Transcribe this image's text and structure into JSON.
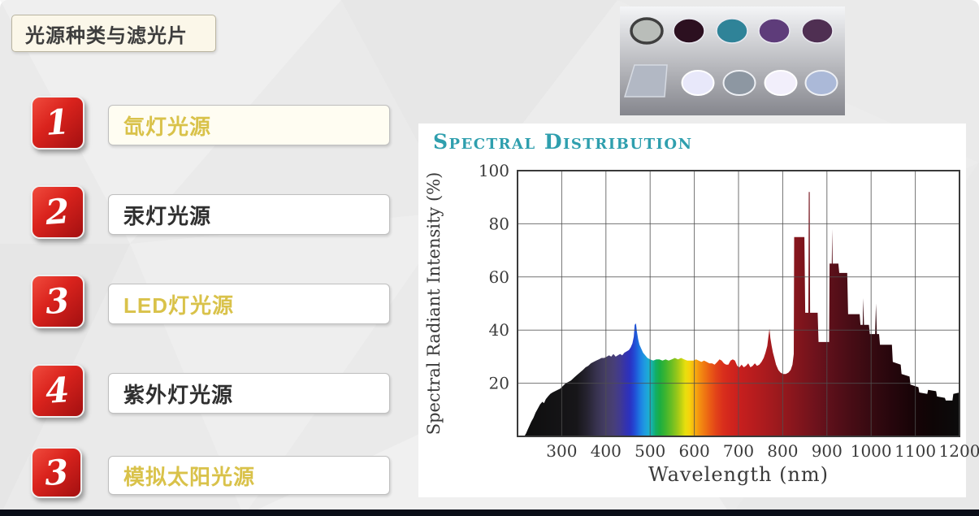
{
  "slide": {
    "title": "光源种类与滤光片",
    "items": [
      {
        "number": "1",
        "label": "氙灯光源",
        "label_color": "gold"
      },
      {
        "number": "2",
        "label": "汞灯光源",
        "label_color": "dark"
      },
      {
        "number": "3",
        "label": "LED灯光源",
        "label_color": "gold"
      },
      {
        "number": "4",
        "label": "紫外灯光源",
        "label_color": "dark"
      },
      {
        "number": "3",
        "label": "模拟太阳光源",
        "label_color": "gold"
      }
    ],
    "colors": {
      "gold_text": "#d9c24a",
      "dark_text": "#2f2f2f",
      "badge_red_light": "#f04b3d",
      "badge_red_dark": "#a31011",
      "title_teal": "#2f9fae",
      "bottom_bar": "#0a0e18"
    }
  },
  "filters_image": {
    "description": "photo of optical filters on gray gradient background",
    "background_top": "#f4f5f7",
    "background_bottom": "#85868d",
    "top_row": [
      {
        "name": "neutral-gray-filter",
        "color": "#b9bdb9",
        "rim": "#3f3f3f",
        "rim_width": 3.5
      },
      {
        "name": "dark-maroon-filter",
        "color": "#2c1020",
        "rim": "#e9e9f0",
        "rim_width": 1.5
      },
      {
        "name": "teal-filter",
        "color": "#2f8398",
        "rim": "#e9e9f0",
        "rim_width": 1.5
      },
      {
        "name": "purple-filter",
        "color": "#5e3c7a",
        "rim": "#e9e9f0",
        "rim_width": 1.5
      },
      {
        "name": "plum-filter",
        "color": "#4f2f52",
        "rim": "#e9e9f0",
        "rim_width": 1.5
      }
    ],
    "glass_plate": {
      "name": "square-glass-plate",
      "color": "#b2b8c4",
      "edge": "#d6dae2"
    },
    "bottom_row": [
      {
        "name": "pale-lavender-filter",
        "color": "#e8e8fa",
        "rim": "#ffffff",
        "rim_width": 2
      },
      {
        "name": "gray-blue-filter",
        "color": "#8d97a2",
        "rim": "#eef0f4",
        "rim_width": 2
      },
      {
        "name": "near-white-filter",
        "color": "#f2effb",
        "rim": "#ffffff",
        "rim_width": 2
      },
      {
        "name": "periwinkle-filter",
        "color": "#abb9d8",
        "rim": "#eef0f4",
        "rim_width": 2
      }
    ]
  },
  "chart_data": {
    "type": "area",
    "title": "Spectral Distribution",
    "xlabel": "Wavelength (nm)",
    "ylabel": "Spectral Radiant Intensity (%)",
    "xlim": [
      200,
      1200
    ],
    "ylim": [
      0,
      100
    ],
    "x_ticks": [
      300,
      400,
      500,
      600,
      700,
      800,
      900,
      1000,
      1100,
      1200
    ],
    "y_ticks": [
      20,
      40,
      60,
      80,
      100
    ],
    "grid": true,
    "legend": "none",
    "series": [
      {
        "name": "xenon lamp spectral radiant intensity (%) vs wavelength (nm)",
        "points": [
          [
            215,
            0
          ],
          [
            219,
            1
          ],
          [
            223,
            2.5
          ],
          [
            227,
            4
          ],
          [
            231,
            5.5
          ],
          [
            236,
            7
          ],
          [
            241,
            9
          ],
          [
            246,
            10.5
          ],
          [
            251,
            12
          ],
          [
            256,
            13
          ],
          [
            260,
            12.5
          ],
          [
            264,
            14
          ],
          [
            269,
            15
          ],
          [
            274,
            16
          ],
          [
            279,
            16.5
          ],
          [
            285,
            17
          ],
          [
            291,
            17.5
          ],
          [
            297,
            18
          ],
          [
            303,
            19
          ],
          [
            309,
            20
          ],
          [
            315,
            20.5
          ],
          [
            321,
            21
          ],
          [
            327,
            22
          ],
          [
            334,
            23
          ],
          [
            341,
            24
          ],
          [
            348,
            25
          ],
          [
            354,
            26
          ],
          [
            360,
            26.5
          ],
          [
            366,
            27.5
          ],
          [
            372,
            28
          ],
          [
            378,
            28.5
          ],
          [
            384,
            29
          ],
          [
            390,
            29.5
          ],
          [
            396,
            29.5
          ],
          [
            402,
            30
          ],
          [
            407,
            30.5
          ],
          [
            412,
            30
          ],
          [
            417,
            31
          ],
          [
            422,
            30
          ],
          [
            427,
            30.5
          ],
          [
            432,
            31
          ],
          [
            437,
            30.5
          ],
          [
            442,
            31.5
          ],
          [
            447,
            32
          ],
          [
            452,
            32.5
          ],
          [
            456,
            33.5
          ],
          [
            460,
            35
          ],
          [
            463,
            37.5
          ],
          [
            465,
            42
          ],
          [
            468,
            42.5
          ],
          [
            470,
            39.5
          ],
          [
            473,
            36.5
          ],
          [
            476,
            34.5
          ],
          [
            480,
            33
          ],
          [
            484,
            31.5
          ],
          [
            489,
            30.5
          ],
          [
            494,
            29.5
          ],
          [
            500,
            29
          ],
          [
            507,
            28.5
          ],
          [
            514,
            29
          ],
          [
            521,
            29
          ],
          [
            528,
            28.5
          ],
          [
            535,
            29
          ],
          [
            542,
            28.5
          ],
          [
            549,
            29
          ],
          [
            556,
            29.5
          ],
          [
            563,
            29
          ],
          [
            570,
            29.5
          ],
          [
            577,
            29
          ],
          [
            584,
            28.5
          ],
          [
            591,
            28.5
          ],
          [
            598,
            28.5
          ],
          [
            604,
            29
          ],
          [
            610,
            28.5
          ],
          [
            616,
            28
          ],
          [
            622,
            28.5
          ],
          [
            628,
            28
          ],
          [
            634,
            27.5
          ],
          [
            640,
            27.5
          ],
          [
            646,
            27
          ],
          [
            652,
            28
          ],
          [
            657,
            29
          ],
          [
            662,
            28.5
          ],
          [
            667,
            27.5
          ],
          [
            672,
            27
          ],
          [
            677,
            27
          ],
          [
            682,
            28.5
          ],
          [
            687,
            29
          ],
          [
            692,
            28.5
          ],
          [
            697,
            26.5
          ],
          [
            702,
            26
          ],
          [
            707,
            27
          ],
          [
            712,
            26
          ],
          [
            717,
            26.5
          ],
          [
            722,
            27.5
          ],
          [
            727,
            26
          ],
          [
            732,
            26.5
          ],
          [
            737,
            27.5
          ],
          [
            742,
            26.5
          ],
          [
            747,
            27
          ],
          [
            752,
            28
          ],
          [
            757,
            29.5
          ],
          [
            761,
            31.5
          ],
          [
            765,
            34
          ],
          [
            768,
            38
          ],
          [
            770,
            40.5
          ],
          [
            772,
            37
          ],
          [
            775,
            34
          ],
          [
            778,
            31.5
          ],
          [
            781,
            29.5
          ],
          [
            785,
            27
          ],
          [
            790,
            25
          ],
          [
            795,
            24
          ],
          [
            801,
            23.5
          ],
          [
            807,
            23.5
          ],
          [
            813,
            24
          ],
          [
            818,
            25
          ],
          [
            822,
            27
          ],
          [
            825,
            31
          ],
          [
            826,
            75
          ],
          [
            849,
            75
          ],
          [
            851,
            46.5
          ],
          [
            858,
            46.5
          ],
          [
            859,
            92
          ],
          [
            861,
            92
          ],
          [
            862,
            46.5
          ],
          [
            879,
            46.5
          ],
          [
            881,
            35.5
          ],
          [
            905,
            35.5
          ],
          [
            906,
            65
          ],
          [
            911,
            65
          ],
          [
            912,
            78
          ],
          [
            913,
            65
          ],
          [
            926,
            65
          ],
          [
            928,
            61.5
          ],
          [
            946,
            61.5
          ],
          [
            948,
            46
          ],
          [
            974,
            46
          ],
          [
            976,
            42
          ],
          [
            981,
            42
          ],
          [
            982,
            52
          ],
          [
            984,
            42
          ],
          [
            995,
            42
          ],
          [
            997,
            38.5
          ],
          [
            1009,
            38.5
          ],
          [
            1011,
            50
          ],
          [
            1013,
            38.5
          ],
          [
            1018,
            38.5
          ],
          [
            1020,
            34.5
          ],
          [
            1047,
            34.5
          ],
          [
            1049,
            28
          ],
          [
            1067,
            27
          ],
          [
            1069,
            23.5
          ],
          [
            1087,
            22.5
          ],
          [
            1089,
            19.5
          ],
          [
            1107,
            18.5
          ],
          [
            1109,
            16.5
          ],
          [
            1127,
            16
          ],
          [
            1129,
            17.5
          ],
          [
            1147,
            17
          ],
          [
            1149,
            15
          ],
          [
            1167,
            14.5
          ],
          [
            1169,
            13.5
          ],
          [
            1184,
            13.5
          ],
          [
            1186,
            16
          ],
          [
            1200,
            16.5
          ]
        ]
      }
    ],
    "spectrum_gradient": [
      {
        "wavelength": 200,
        "color": "#0e0e0e"
      },
      {
        "wavelength": 320,
        "color": "#171619"
      },
      {
        "wavelength": 345,
        "color": "#262331"
      },
      {
        "wavelength": 365,
        "color": "#37324e"
      },
      {
        "wavelength": 385,
        "color": "#443d63"
      },
      {
        "wavelength": 405,
        "color": "#483f77"
      },
      {
        "wavelength": 420,
        "color": "#413a90"
      },
      {
        "wavelength": 432,
        "color": "#3533ab"
      },
      {
        "wavelength": 443,
        "color": "#2a32c2"
      },
      {
        "wavelength": 452,
        "color": "#2347d2"
      },
      {
        "wavelength": 460,
        "color": "#1e64dc"
      },
      {
        "wavelength": 468,
        "color": "#1e82e2"
      },
      {
        "wavelength": 477,
        "color": "#1f9be0"
      },
      {
        "wavelength": 486,
        "color": "#1caed2"
      },
      {
        "wavelength": 494,
        "color": "#16b2a4"
      },
      {
        "wavelength": 502,
        "color": "#12ae66"
      },
      {
        "wavelength": 512,
        "color": "#1cae41"
      },
      {
        "wavelength": 524,
        "color": "#3cb430"
      },
      {
        "wavelength": 538,
        "color": "#68bd24"
      },
      {
        "wavelength": 550,
        "color": "#93c61b"
      },
      {
        "wavelength": 560,
        "color": "#bcd013"
      },
      {
        "wavelength": 570,
        "color": "#e7df0e"
      },
      {
        "wavelength": 580,
        "color": "#f6d30c"
      },
      {
        "wavelength": 590,
        "color": "#f7b30e"
      },
      {
        "wavelength": 602,
        "color": "#f49211"
      },
      {
        "wavelength": 615,
        "color": "#ef7612"
      },
      {
        "wavelength": 628,
        "color": "#e95a15"
      },
      {
        "wavelength": 642,
        "color": "#e14119"
      },
      {
        "wavelength": 658,
        "color": "#d92e1c"
      },
      {
        "wavelength": 675,
        "color": "#d1251d"
      },
      {
        "wavelength": 695,
        "color": "#c71f1e"
      },
      {
        "wavelength": 720,
        "color": "#bb1d1e"
      },
      {
        "wavelength": 750,
        "color": "#ac1b1e"
      },
      {
        "wavelength": 785,
        "color": "#9a191d"
      },
      {
        "wavelength": 820,
        "color": "#88161d"
      },
      {
        "wavelength": 860,
        "color": "#73131c"
      },
      {
        "wavelength": 900,
        "color": "#5e101a"
      },
      {
        "wavelength": 945,
        "color": "#4a0d16"
      },
      {
        "wavelength": 995,
        "color": "#370a11"
      },
      {
        "wavelength": 1045,
        "color": "#26060c"
      },
      {
        "wavelength": 1095,
        "color": "#170407"
      },
      {
        "wavelength": 1140,
        "color": "#0e0506"
      },
      {
        "wavelength": 1200,
        "color": "#0c0c0c"
      }
    ]
  }
}
